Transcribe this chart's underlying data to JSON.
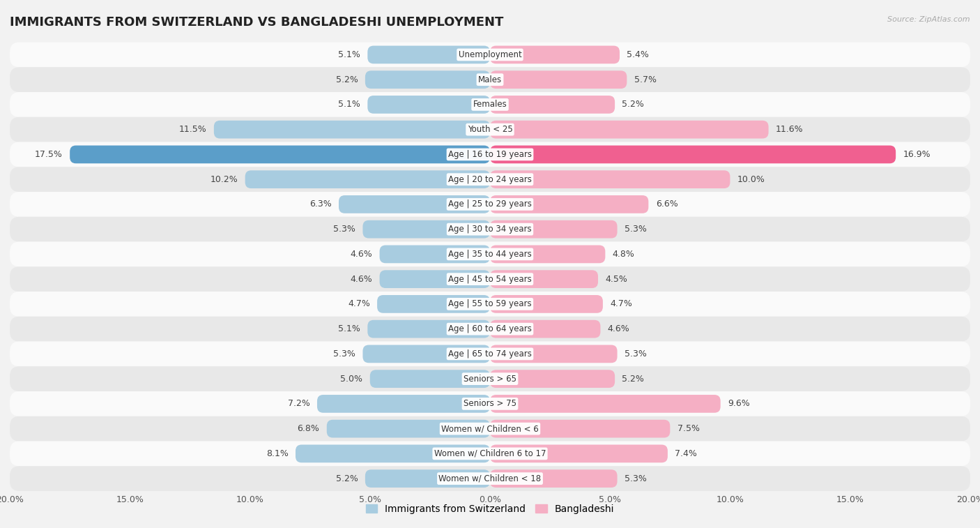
{
  "title": "IMMIGRANTS FROM SWITZERLAND VS BANGLADESHI UNEMPLOYMENT",
  "source": "Source: ZipAtlas.com",
  "categories": [
    "Unemployment",
    "Males",
    "Females",
    "Youth < 25",
    "Age | 16 to 19 years",
    "Age | 20 to 24 years",
    "Age | 25 to 29 years",
    "Age | 30 to 34 years",
    "Age | 35 to 44 years",
    "Age | 45 to 54 years",
    "Age | 55 to 59 years",
    "Age | 60 to 64 years",
    "Age | 65 to 74 years",
    "Seniors > 65",
    "Seniors > 75",
    "Women w/ Children < 6",
    "Women w/ Children 6 to 17",
    "Women w/ Children < 18"
  ],
  "swiss_values": [
    5.1,
    5.2,
    5.1,
    11.5,
    17.5,
    10.2,
    6.3,
    5.3,
    4.6,
    4.6,
    4.7,
    5.1,
    5.3,
    5.0,
    7.2,
    6.8,
    8.1,
    5.2
  ],
  "bangladeshi_values": [
    5.4,
    5.7,
    5.2,
    11.6,
    16.9,
    10.0,
    6.6,
    5.3,
    4.8,
    4.5,
    4.7,
    4.6,
    5.3,
    5.2,
    9.6,
    7.5,
    7.4,
    5.3
  ],
  "swiss_color": "#a8cce0",
  "bangladeshi_color": "#f5afc4",
  "swiss_highlight_color": "#5b9ec9",
  "bangladeshi_highlight_color": "#f06090",
  "bg_color": "#f2f2f2",
  "row_color_light": "#fafafa",
  "row_color_dark": "#e8e8e8",
  "axis_limit": 20.0,
  "legend_swiss": "Immigrants from Switzerland",
  "legend_bangladeshi": "Bangladeshi",
  "label_fontsize": 9.0,
  "title_fontsize": 13,
  "category_fontsize": 8.5
}
